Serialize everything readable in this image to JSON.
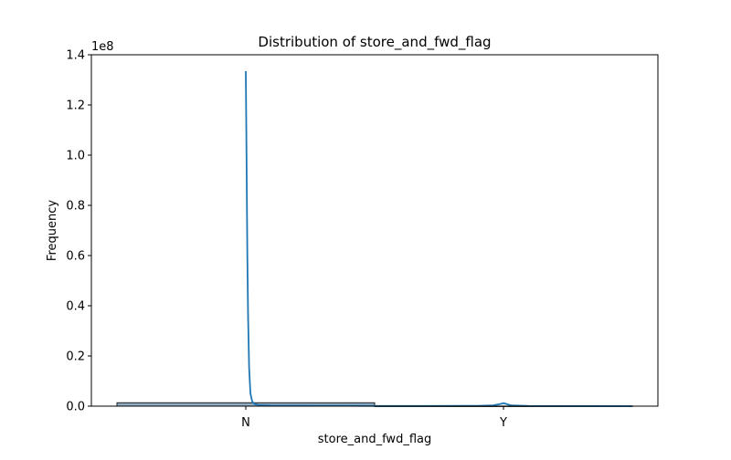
{
  "chart_data": {
    "type": "bar",
    "title": "Distribution of store_and_fwd_flag",
    "xlabel": "store_and_fwd_flag",
    "ylabel": "Frequency",
    "y_offset_label": "1e8",
    "y_scale": 100000000,
    "categories": [
      "N",
      "Y"
    ],
    "ylim": [
      0,
      1.4
    ],
    "yticks": [
      0.0,
      0.2,
      0.4,
      0.6,
      0.8,
      1.0,
      1.2,
      1.4
    ],
    "ytick_labels": [
      "0.0",
      "0.2",
      "0.4",
      "0.6",
      "0.8",
      "1.0",
      "1.2",
      "1.4"
    ],
    "series": [
      {
        "kind": "histogram",
        "bins": [
          {
            "from": -0.5,
            "to": 0.5,
            "value": 0.0135
          },
          {
            "from": 0.5,
            "to": 1.5,
            "value": 0.0003
          }
        ]
      },
      {
        "kind": "kde",
        "x": [
          0.0,
          0.002,
          0.004,
          0.006,
          0.009,
          0.013,
          0.018,
          0.025,
          0.035,
          0.05,
          0.1,
          0.3,
          0.5,
          0.7,
          0.9,
          0.96,
          0.99,
          1.0,
          1.01,
          1.03,
          1.1,
          1.5
        ],
        "y": [
          1.335,
          1.1,
          0.85,
          0.6,
          0.35,
          0.15,
          0.05,
          0.018,
          0.008,
          0.004,
          0.002,
          0.0015,
          0.001,
          0.001,
          0.0015,
          0.003,
          0.009,
          0.012,
          0.009,
          0.003,
          0.001,
          0.0
        ]
      }
    ],
    "colors": {
      "bar_fill": "#8fadc4",
      "bar_edge": "#1f1f1f",
      "kde_line": "#1f77b4",
      "axes": "#000000"
    },
    "grid": false,
    "legend": "none"
  }
}
